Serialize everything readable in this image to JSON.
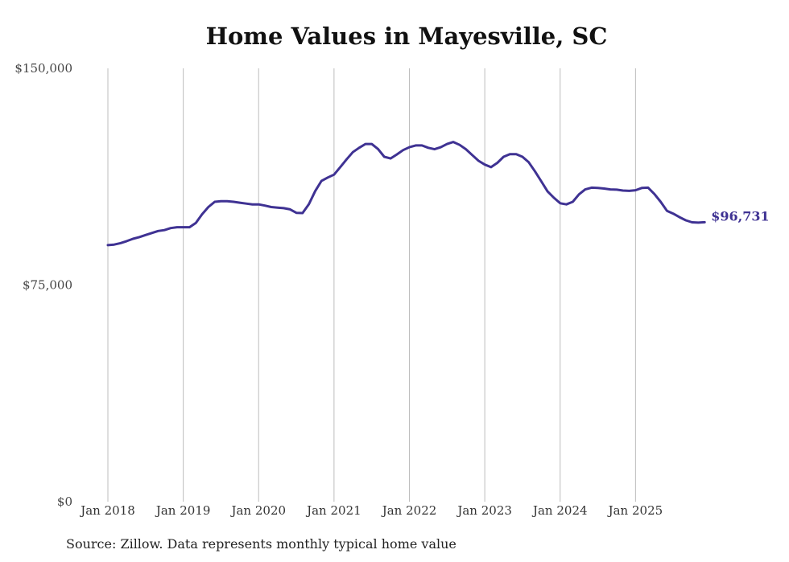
{
  "chart_data": {
    "type": "line",
    "title": "Home Values in Mayesville, SC",
    "xlabel": "",
    "ylabel": "",
    "ylim": [
      0,
      150000
    ],
    "y_ticks": [
      {
        "value": 0,
        "label": "$0"
      },
      {
        "value": 75000,
        "label": "$75,000"
      },
      {
        "value": 150000,
        "label": "$150,000"
      }
    ],
    "x_ticks": [
      {
        "value": 2018,
        "label": "Jan 2018"
      },
      {
        "value": 2019,
        "label": "Jan 2019"
      },
      {
        "value": 2020,
        "label": "Jan 2020"
      },
      {
        "value": 2021,
        "label": "Jan 2021"
      },
      {
        "value": 2022,
        "label": "Jan 2022"
      },
      {
        "value": 2023,
        "label": "Jan 2023"
      },
      {
        "value": 2024,
        "label": "Jan 2024"
      },
      {
        "value": 2025,
        "label": "Jan 2025"
      }
    ],
    "xlim": [
      2018,
      2026
    ],
    "grid": "vertical",
    "series": [
      {
        "name": "Typical home value",
        "color": "#3f3293",
        "end_label": "$96,731",
        "x": [
          2018.0,
          2018.083,
          2018.167,
          2018.25,
          2018.333,
          2018.417,
          2018.5,
          2018.583,
          2018.667,
          2018.75,
          2018.833,
          2018.917,
          2019.0,
          2019.083,
          2019.167,
          2019.25,
          2019.333,
          2019.417,
          2019.5,
          2019.583,
          2019.667,
          2019.75,
          2019.833,
          2019.917,
          2020.0,
          2020.083,
          2020.167,
          2020.25,
          2020.333,
          2020.417,
          2020.5,
          2020.583,
          2020.667,
          2020.75,
          2020.833,
          2020.917,
          2021.0,
          2021.083,
          2021.167,
          2021.25,
          2021.333,
          2021.417,
          2021.5,
          2021.583,
          2021.667,
          2021.75,
          2021.833,
          2021.917,
          2022.0,
          2022.083,
          2022.167,
          2022.25,
          2022.333,
          2022.417,
          2022.5,
          2022.583,
          2022.667,
          2022.75,
          2022.833,
          2022.917,
          2023.0,
          2023.083,
          2023.167,
          2023.25,
          2023.333,
          2023.417,
          2023.5,
          2023.583,
          2023.667,
          2023.75,
          2023.833,
          2023.917,
          2024.0,
          2024.083,
          2024.167,
          2024.25,
          2024.333,
          2024.417,
          2024.5,
          2024.583,
          2024.667,
          2024.75,
          2024.833,
          2024.917,
          2025.0,
          2025.083,
          2025.167,
          2025.25,
          2025.333,
          2025.417,
          2025.5,
          2025.583,
          2025.667,
          2025.75,
          2025.833,
          2025.917
        ],
        "y": [
          88800,
          89000,
          89500,
          90200,
          91000,
          91600,
          92300,
          93000,
          93700,
          94000,
          94700,
          95000,
          95000,
          95000,
          96500,
          99500,
          102000,
          103800,
          104000,
          104000,
          103800,
          103500,
          103200,
          102900,
          102900,
          102500,
          102000,
          101800,
          101600,
          101200,
          100000,
          99900,
          103000,
          107500,
          111000,
          112200,
          113200,
          115800,
          118500,
          121000,
          122500,
          123800,
          123800,
          122100,
          119400,
          118800,
          120200,
          121700,
          122700,
          123300,
          123300,
          122500,
          122000,
          122700,
          123800,
          124500,
          123500,
          122000,
          120000,
          118000,
          116700,
          115800,
          117300,
          119400,
          120300,
          120300,
          119400,
          117500,
          114300,
          110900,
          107400,
          105200,
          103300,
          102900,
          103800,
          106400,
          108100,
          108700,
          108600,
          108400,
          108100,
          108000,
          107700,
          107600,
          107800,
          108600,
          108700,
          106500,
          103800,
          100700,
          99700,
          98500,
          97400,
          96700,
          96600,
          96731
        ]
      }
    ]
  },
  "footer": {
    "source": "Source: Zillow. Data represents monthly typical home value"
  }
}
